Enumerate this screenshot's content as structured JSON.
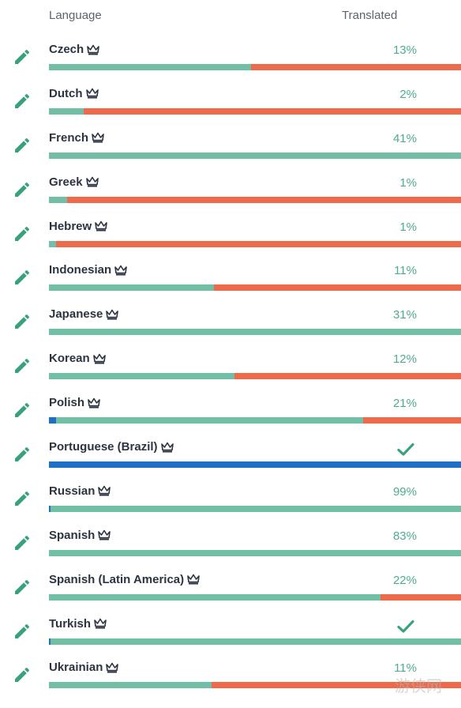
{
  "header": {
    "language_label": "Language",
    "translated_label": "Translated"
  },
  "icons": {
    "edit": "pencil-icon",
    "owner": "crown-icon",
    "complete": "check-icon"
  },
  "colors": {
    "approved": "#1f70c4",
    "translated": "#72bfa8",
    "untranslated": "#ed6a4b",
    "percent_text": "#4dab91",
    "edit_icon": "#3aa17e",
    "language_text": "#2b3440"
  },
  "rows": [
    {
      "name": "Czech",
      "percent_label": "13%",
      "complete": false,
      "approved": 0,
      "translated": 0.49
    },
    {
      "name": "Dutch",
      "percent_label": "2%",
      "complete": false,
      "approved": 0,
      "translated": 0.085
    },
    {
      "name": "French",
      "percent_label": "41%",
      "complete": false,
      "approved": 0,
      "translated": 1.0
    },
    {
      "name": "Greek",
      "percent_label": "1%",
      "complete": false,
      "approved": 0,
      "translated": 0.045
    },
    {
      "name": "Hebrew",
      "percent_label": "1%",
      "complete": false,
      "approved": 0,
      "translated": 0.017
    },
    {
      "name": "Indonesian",
      "percent_label": "11%",
      "complete": false,
      "approved": 0,
      "translated": 0.4
    },
    {
      "name": "Japanese",
      "percent_label": "31%",
      "complete": false,
      "approved": 0,
      "translated": 1.0
    },
    {
      "name": "Korean",
      "percent_label": "12%",
      "complete": false,
      "approved": 0,
      "translated": 0.45
    },
    {
      "name": "Polish",
      "percent_label": "21%",
      "complete": false,
      "approved": 0.018,
      "translated": 0.746
    },
    {
      "name": "Portuguese (Brazil)",
      "percent_label": "",
      "complete": true,
      "approved": 1.0,
      "translated": 0
    },
    {
      "name": "Russian",
      "percent_label": "99%",
      "complete": false,
      "approved": 0.004,
      "translated": 0.996
    },
    {
      "name": "Spanish",
      "percent_label": "83%",
      "complete": false,
      "approved": 0,
      "translated": 1.0
    },
    {
      "name": "Spanish (Latin America)",
      "percent_label": "22%",
      "complete": false,
      "approved": 0,
      "translated": 0.805
    },
    {
      "name": "Turkish",
      "percent_label": "",
      "complete": true,
      "approved": 0.004,
      "translated": 0.996
    },
    {
      "name": "Ukrainian",
      "percent_label": "11%",
      "complete": false,
      "approved": 0,
      "translated": 0.395
    }
  ],
  "watermark": "游侠网"
}
